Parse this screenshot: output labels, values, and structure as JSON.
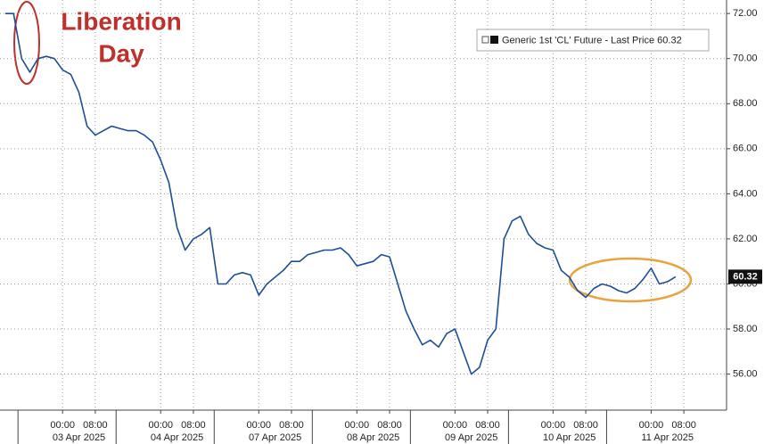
{
  "chart_data": {
    "type": "line",
    "annotation": [
      "Liberation",
      "Day"
    ],
    "categories": [
      null,
      null,
      null,
      null,
      null,
      null,
      null,
      "00:00",
      null,
      null,
      null,
      "08:00",
      null,
      null,
      null,
      null,
      null,
      null,
      null,
      "00:00",
      null,
      null,
      null,
      "08:00",
      null,
      null,
      null,
      null,
      null,
      null,
      null,
      "00:00",
      null,
      null,
      null,
      "08:00",
      null,
      null,
      null,
      null,
      null,
      null,
      null,
      "00:00",
      null,
      null,
      null,
      "08:00",
      null,
      null,
      null,
      null,
      null,
      null,
      null,
      "00:00",
      null,
      null,
      null,
      "08:00",
      null,
      null,
      null,
      null,
      null,
      null,
      null,
      "00:00",
      null,
      null,
      null,
      "08:00",
      null,
      null,
      null,
      null,
      null,
      null,
      null,
      "00:00",
      null,
      null,
      null,
      "08:00"
    ],
    "dates": [
      "03 Apr 2025",
      "04 Apr 2025",
      "07 Apr 2025",
      "08 Apr 2025",
      "09 Apr 2025",
      "10 Apr 2025",
      "11 Apr 2025"
    ],
    "series": [
      {
        "name": "Generic 1st 'CL' Future - Last Price",
        "color": "#1f4e99",
        "values": [
          72.0,
          72.0,
          70.0,
          69.4,
          70.0,
          70.1,
          70.0,
          69.5,
          69.3,
          68.5,
          67.0,
          66.6,
          66.8,
          67.0,
          66.9,
          66.8,
          66.8,
          66.6,
          66.3,
          65.5,
          64.5,
          62.5,
          61.5,
          62.0,
          62.2,
          62.5,
          60.0,
          60.0,
          60.4,
          60.5,
          60.4,
          59.5,
          60.0,
          60.3,
          60.6,
          61.0,
          61.0,
          61.3,
          61.4,
          61.5,
          61.5,
          61.6,
          61.3,
          60.8,
          60.9,
          61.0,
          61.3,
          61.2,
          60.0,
          58.8,
          58.0,
          57.3,
          57.5,
          57.2,
          57.8,
          58.0,
          57.0,
          56.0,
          56.3,
          57.5,
          58.0,
          62.0,
          62.8,
          63.0,
          62.2,
          61.8,
          61.6,
          61.5,
          60.6,
          60.3,
          59.7,
          59.4,
          59.8,
          60.0,
          59.9,
          59.7,
          59.6,
          59.8,
          60.2,
          60.7,
          60.0,
          60.1,
          60.32,
          null
        ]
      }
    ],
    "ylim": [
      54.4,
      72.6
    ],
    "yticks": [
      {
        "value": 56,
        "label": "56.00"
      },
      {
        "value": 58,
        "label": "58.00"
      },
      {
        "value": 60,
        "label": "60.00"
      },
      {
        "value": 62,
        "label": "62.00"
      },
      {
        "value": 64,
        "label": "64.00"
      },
      {
        "value": 66,
        "label": "66.00"
      },
      {
        "value": 68,
        "label": "68.00"
      },
      {
        "value": 70,
        "label": "70.00"
      },
      {
        "value": 72,
        "label": "72.00"
      }
    ],
    "grid": true
  }
}
